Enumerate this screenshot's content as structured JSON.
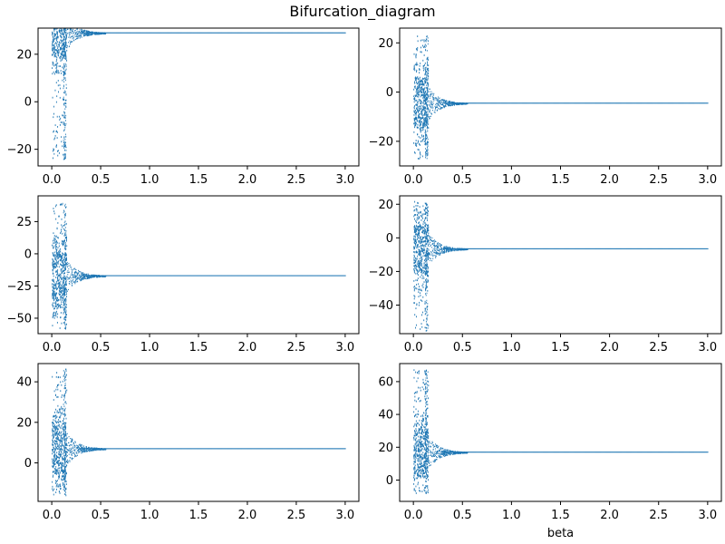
{
  "figure": {
    "title": "Bifurcation_diagram"
  },
  "colors": {
    "points": "#1f77b4",
    "axes": "#000000",
    "background": "#ffffff"
  },
  "chart_data": [
    {
      "type": "scatter",
      "xlabel": "",
      "xlim": [
        -0.14,
        3.14
      ],
      "ylim": [
        -27,
        31
      ],
      "x_ticks": [
        0.0,
        0.5,
        1.0,
        1.5,
        2.0,
        2.5,
        3.0
      ],
      "x_tick_labels": [
        "0.0",
        "0.5",
        "1.0",
        "1.5",
        "2.0",
        "2.5",
        "3.0"
      ],
      "y_ticks": [
        -20,
        0,
        20
      ],
      "y_tick_labels": [
        "−20",
        "0",
        "20"
      ],
      "converged_value": 29,
      "chaos_range": [
        -24,
        27
      ]
    },
    {
      "type": "scatter",
      "xlabel": "",
      "xlim": [
        -0.14,
        3.14
      ],
      "ylim": [
        -30,
        26
      ],
      "x_ticks": [
        0.0,
        0.5,
        1.0,
        1.5,
        2.0,
        2.5,
        3.0
      ],
      "x_tick_labels": [
        "0.0",
        "0.5",
        "1.0",
        "1.5",
        "2.0",
        "2.5",
        "3.0"
      ],
      "y_ticks": [
        -20,
        0,
        20
      ],
      "y_tick_labels": [
        "−20",
        "0",
        "20"
      ],
      "converged_value": -4.5,
      "chaos_range": [
        -27,
        23
      ]
    },
    {
      "type": "scatter",
      "xlabel": "",
      "xlim": [
        -0.14,
        3.14
      ],
      "ylim": [
        -62,
        45
      ],
      "x_ticks": [
        0.0,
        0.5,
        1.0,
        1.5,
        2.0,
        2.5,
        3.0
      ],
      "x_tick_labels": [
        "0.0",
        "0.5",
        "1.0",
        "1.5",
        "2.0",
        "2.5",
        "3.0"
      ],
      "y_ticks": [
        -50,
        -25,
        0,
        25
      ],
      "y_tick_labels": [
        "−50",
        "−25",
        "0",
        "25"
      ],
      "converged_value": -17,
      "chaos_range": [
        -58,
        40
      ]
    },
    {
      "type": "scatter",
      "xlabel": "",
      "xlim": [
        -0.14,
        3.14
      ],
      "ylim": [
        -57,
        25
      ],
      "x_ticks": [
        0.0,
        0.5,
        1.0,
        1.5,
        2.0,
        2.5,
        3.0
      ],
      "x_tick_labels": [
        "0.0",
        "0.5",
        "1.0",
        "1.5",
        "2.0",
        "2.5",
        "3.0"
      ],
      "y_ticks": [
        -40,
        -20,
        0,
        20
      ],
      "y_tick_labels": [
        "−40",
        "−20",
        "0",
        "20"
      ],
      "converged_value": -6.5,
      "chaos_range": [
        -55,
        22
      ]
    },
    {
      "type": "scatter",
      "xlabel": "",
      "xlim": [
        -0.14,
        3.14
      ],
      "ylim": [
        -19,
        49
      ],
      "x_ticks": [
        0.0,
        0.5,
        1.0,
        1.5,
        2.0,
        2.5,
        3.0
      ],
      "x_tick_labels": [
        "0.0",
        "0.5",
        "1.0",
        "1.5",
        "2.0",
        "2.5",
        "3.0"
      ],
      "y_ticks": [
        0,
        20,
        40
      ],
      "y_tick_labels": [
        "0",
        "20",
        "40"
      ],
      "converged_value": 7,
      "chaos_range": [
        -16,
        47
      ]
    },
    {
      "type": "scatter",
      "xlabel": "beta",
      "xlim": [
        -0.14,
        3.14
      ],
      "ylim": [
        -13,
        71
      ],
      "x_ticks": [
        0.0,
        0.5,
        1.0,
        1.5,
        2.0,
        2.5,
        3.0
      ],
      "x_tick_labels": [
        "0.0",
        "0.5",
        "1.0",
        "1.5",
        "2.0",
        "2.5",
        "3.0"
      ],
      "y_ticks": [
        0,
        20,
        40,
        60
      ],
      "y_tick_labels": [
        "0",
        "20",
        "40",
        "60"
      ],
      "converged_value": 17,
      "chaos_range": [
        1,
        68
      ]
    }
  ]
}
